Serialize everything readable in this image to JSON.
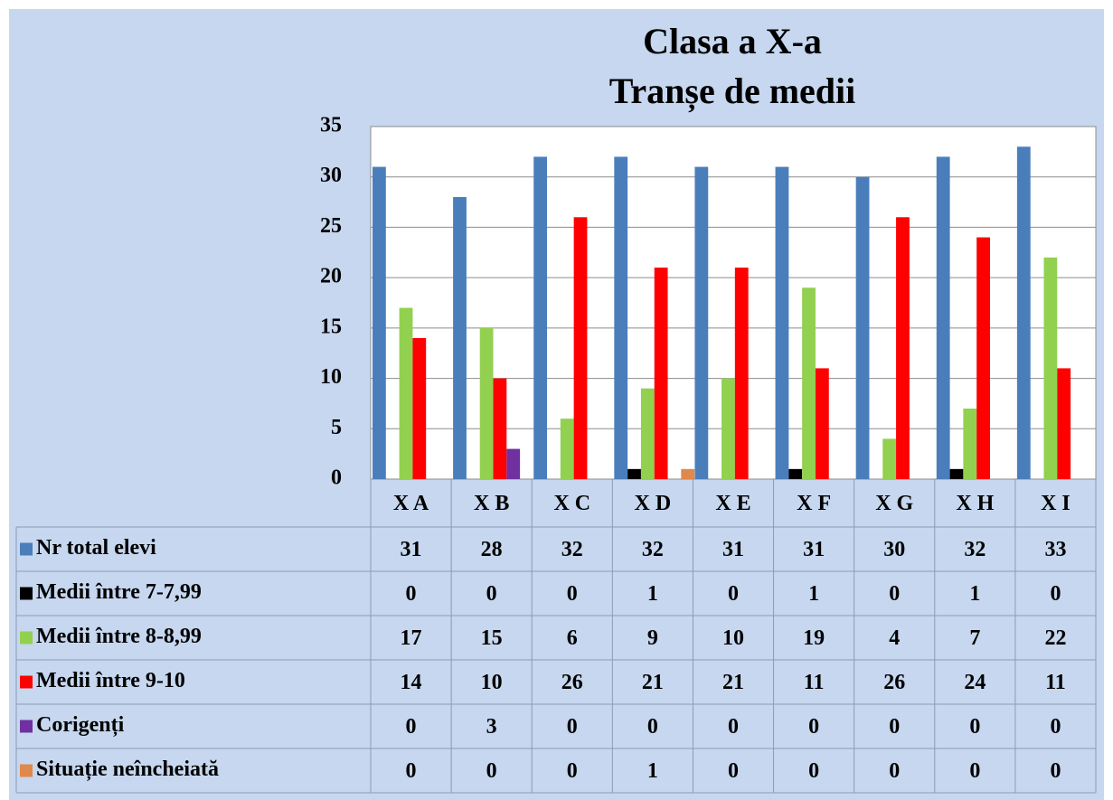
{
  "chart_data": {
    "type": "bar",
    "title": "Clasa a X-a",
    "subtitle": "Tranșe de medii",
    "categories": [
      "X A",
      "X B",
      "X C",
      "X D",
      "X E",
      "X F",
      "X G",
      "X H",
      "X I"
    ],
    "series": [
      {
        "name": "Nr total elevi",
        "color": "#4a7ebb",
        "values": [
          31,
          28,
          32,
          32,
          31,
          31,
          30,
          32,
          33
        ]
      },
      {
        "name": "Medii între 7-7,99",
        "color": "#000000",
        "values": [
          0,
          0,
          0,
          1,
          0,
          1,
          0,
          1,
          0
        ]
      },
      {
        "name": "Medii între 8-8,99",
        "color": "#92d050",
        "values": [
          17,
          15,
          6,
          9,
          10,
          19,
          4,
          7,
          22
        ]
      },
      {
        "name": "Medii între 9-10",
        "color": "#ff0000",
        "values": [
          14,
          10,
          26,
          21,
          21,
          11,
          26,
          24,
          11
        ]
      },
      {
        "name": "Corigenți",
        "color": "#7030a0",
        "values": [
          0,
          3,
          0,
          0,
          0,
          0,
          0,
          0,
          0
        ]
      },
      {
        "name": "Situație neîncheiată",
        "color": "#e0894a",
        "values": [
          0,
          0,
          0,
          1,
          0,
          0,
          0,
          0,
          0
        ]
      }
    ],
    "ylim": [
      0,
      35
    ],
    "yticks": [
      0,
      5,
      10,
      15,
      20,
      25,
      30,
      35
    ],
    "grid": true,
    "legend": "table"
  }
}
